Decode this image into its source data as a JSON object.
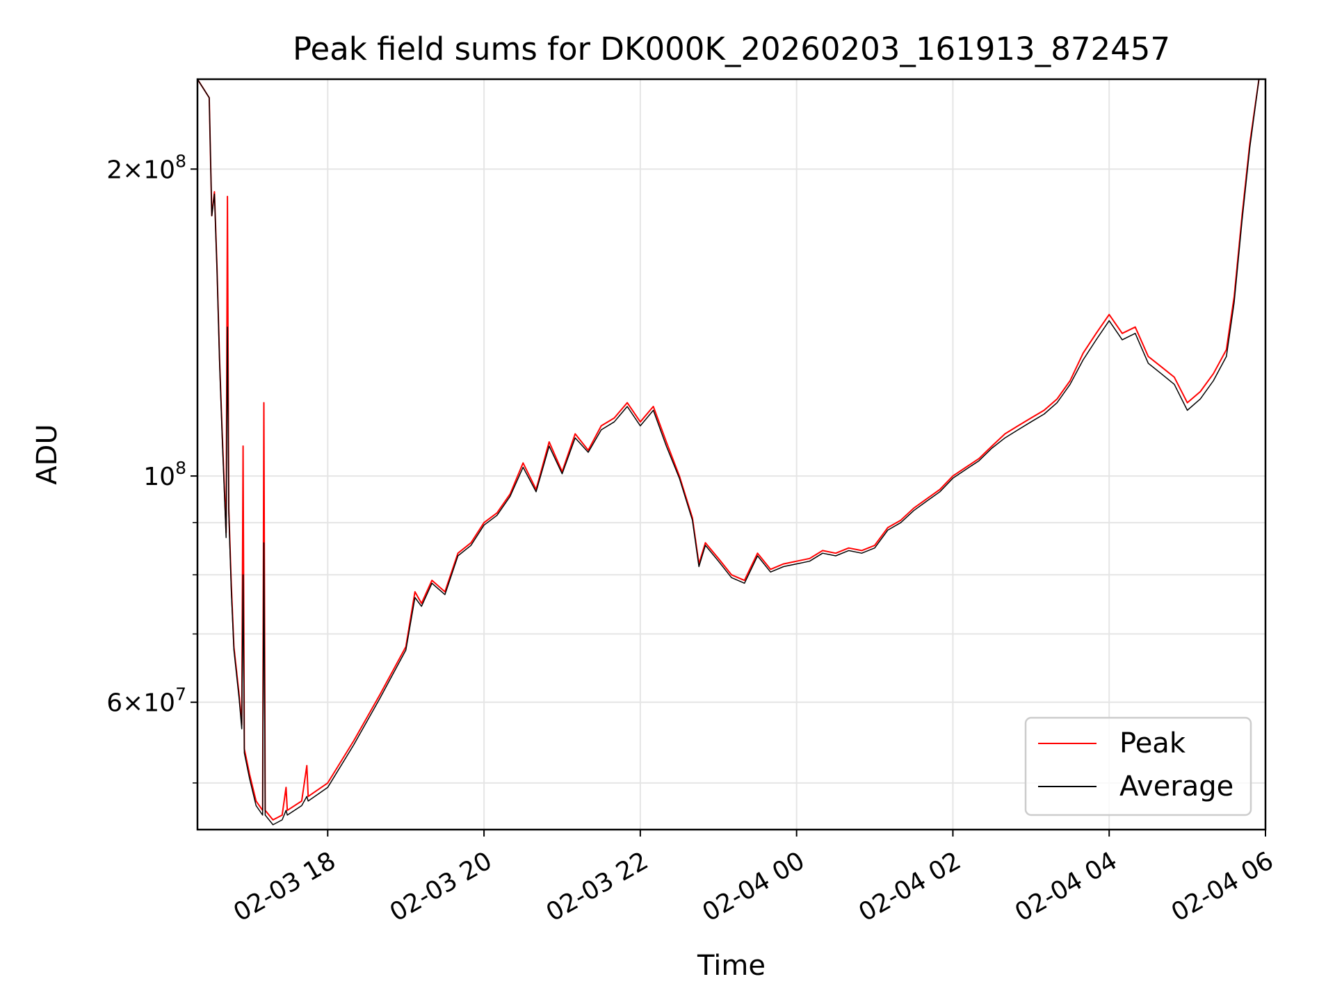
{
  "chart_data": {
    "type": "line",
    "title": "Peak field sums for DK000K_20260203_161913_872457",
    "xlabel": "Time",
    "ylabel": "ADU",
    "x_range": [
      "2026-02-03 16:20",
      "2026-02-04 06:00"
    ],
    "y_scale": "log",
    "ylim": [
      45000000,
      245000000
    ],
    "x_ticks": [
      {
        "value": "2026-02-03 18:00",
        "label": "02-03 18"
      },
      {
        "value": "2026-02-03 20:00",
        "label": "02-03 20"
      },
      {
        "value": "2026-02-03 22:00",
        "label": "02-03 22"
      },
      {
        "value": "2026-02-04 00:00",
        "label": "02-04 00"
      },
      {
        "value": "2026-02-04 02:00",
        "label": "02-04 02"
      },
      {
        "value": "2026-02-04 04:00",
        "label": "02-04 04"
      },
      {
        "value": "2026-02-04 06:00",
        "label": "02-04 06"
      }
    ],
    "y_major_ticks": [
      {
        "value": 200000000,
        "mantissa": "2",
        "exponent": "8",
        "label": "2×10^8"
      },
      {
        "value": 100000000,
        "mantissa": "",
        "exponent": "8",
        "label": "10^8"
      },
      {
        "value": 60000000,
        "mantissa": "6",
        "exponent": "7",
        "label": "6×10^7"
      }
    ],
    "y_minor_ticks": [
      50000000,
      70000000,
      80000000,
      90000000
    ],
    "grid": true,
    "legend_position": "lower-right",
    "series": [
      {
        "name": "Peak",
        "color": "#ff0000",
        "points": [
          [
            "2026-02-03 16:20",
            245000000
          ],
          [
            "2026-02-03 16:29",
            235000000
          ],
          [
            "2026-02-03 16:31",
            180000000
          ],
          [
            "2026-02-03 16:33",
            190000000
          ],
          [
            "2026-02-03 16:35",
            160000000
          ],
          [
            "2026-02-03 16:37",
            130000000
          ],
          [
            "2026-02-03 16:39",
            110000000
          ],
          [
            "2026-02-03 16:41",
            95000000
          ],
          [
            "2026-02-03 16:42",
            88000000
          ],
          [
            "2026-02-03 16:43",
            188000000
          ],
          [
            "2026-02-03 16:44",
            93000000
          ],
          [
            "2026-02-03 16:46",
            78000000
          ],
          [
            "2026-02-03 16:48",
            68000000
          ],
          [
            "2026-02-03 16:52",
            61000000
          ],
          [
            "2026-02-03 16:54",
            57000000
          ],
          [
            "2026-02-03 16:55",
            107000000
          ],
          [
            "2026-02-03 16:56",
            54000000
          ],
          [
            "2026-02-03 17:00",
            51000000
          ],
          [
            "2026-02-03 17:05",
            48000000
          ],
          [
            "2026-02-03 17:10",
            47000000
          ],
          [
            "2026-02-03 17:11",
            118000000
          ],
          [
            "2026-02-03 17:12",
            47000000
          ],
          [
            "2026-02-03 17:18",
            46000000
          ],
          [
            "2026-02-03 17:25",
            46500000
          ],
          [
            "2026-02-03 17:28",
            49500000
          ],
          [
            "2026-02-03 17:29",
            47000000
          ],
          [
            "2026-02-03 17:40",
            48000000
          ],
          [
            "2026-02-03 17:44",
            52000000
          ],
          [
            "2026-02-03 17:45",
            48500000
          ],
          [
            "2026-02-03 18:00",
            50000000
          ],
          [
            "2026-02-03 18:20",
            55000000
          ],
          [
            "2026-02-03 18:40",
            61000000
          ],
          [
            "2026-02-03 19:00",
            68000000
          ],
          [
            "2026-02-03 19:07",
            77000000
          ],
          [
            "2026-02-03 19:12",
            75000000
          ],
          [
            "2026-02-03 19:20",
            79000000
          ],
          [
            "2026-02-03 19:30",
            77000000
          ],
          [
            "2026-02-03 19:40",
            84000000
          ],
          [
            "2026-02-03 19:50",
            86000000
          ],
          [
            "2026-02-03 20:00",
            90000000
          ],
          [
            "2026-02-03 20:10",
            92000000
          ],
          [
            "2026-02-03 20:20",
            96000000
          ],
          [
            "2026-02-03 20:30",
            103000000
          ],
          [
            "2026-02-03 20:40",
            97000000
          ],
          [
            "2026-02-03 20:50",
            108000000
          ],
          [
            "2026-02-03 21:00",
            101000000
          ],
          [
            "2026-02-03 21:10",
            110000000
          ],
          [
            "2026-02-03 21:20",
            106000000
          ],
          [
            "2026-02-03 21:30",
            112000000
          ],
          [
            "2026-02-03 21:40",
            114000000
          ],
          [
            "2026-02-03 21:50",
            118000000
          ],
          [
            "2026-02-03 22:00",
            113000000
          ],
          [
            "2026-02-03 22:10",
            117000000
          ],
          [
            "2026-02-03 22:20",
            108000000
          ],
          [
            "2026-02-03 22:30",
            100000000
          ],
          [
            "2026-02-03 22:40",
            91000000
          ],
          [
            "2026-02-03 22:45",
            82000000
          ],
          [
            "2026-02-03 22:50",
            86000000
          ],
          [
            "2026-02-03 23:00",
            83000000
          ],
          [
            "2026-02-03 23:10",
            80000000
          ],
          [
            "2026-02-03 23:20",
            79000000
          ],
          [
            "2026-02-03 23:30",
            84000000
          ],
          [
            "2026-02-03 23:40",
            81000000
          ],
          [
            "2026-02-03 23:50",
            82000000
          ],
          [
            "2026-02-04 00:00",
            82500000
          ],
          [
            "2026-02-04 00:10",
            83000000
          ],
          [
            "2026-02-04 00:20",
            84500000
          ],
          [
            "2026-02-04 00:30",
            84000000
          ],
          [
            "2026-02-04 00:40",
            85000000
          ],
          [
            "2026-02-04 00:50",
            84500000
          ],
          [
            "2026-02-04 01:00",
            85500000
          ],
          [
            "2026-02-04 01:10",
            89000000
          ],
          [
            "2026-02-04 01:20",
            90500000
          ],
          [
            "2026-02-04 01:30",
            93000000
          ],
          [
            "2026-02-04 01:40",
            95000000
          ],
          [
            "2026-02-04 01:50",
            97000000
          ],
          [
            "2026-02-04 02:00",
            100000000
          ],
          [
            "2026-02-04 02:10",
            102000000
          ],
          [
            "2026-02-04 02:20",
            104000000
          ],
          [
            "2026-02-04 02:30",
            107000000
          ],
          [
            "2026-02-04 02:40",
            110000000
          ],
          [
            "2026-02-04 02:50",
            112000000
          ],
          [
            "2026-02-04 03:00",
            114000000
          ],
          [
            "2026-02-04 03:10",
            116000000
          ],
          [
            "2026-02-04 03:20",
            119000000
          ],
          [
            "2026-02-04 03:30",
            124000000
          ],
          [
            "2026-02-04 03:40",
            132000000
          ],
          [
            "2026-02-04 03:50",
            138000000
          ],
          [
            "2026-02-04 04:00",
            144000000
          ],
          [
            "2026-02-04 04:10",
            138000000
          ],
          [
            "2026-02-04 04:20",
            140000000
          ],
          [
            "2026-02-04 04:30",
            131000000
          ],
          [
            "2026-02-04 04:40",
            128000000
          ],
          [
            "2026-02-04 04:50",
            125000000
          ],
          [
            "2026-02-04 05:00",
            118000000
          ],
          [
            "2026-02-04 05:10",
            121000000
          ],
          [
            "2026-02-04 05:20",
            126000000
          ],
          [
            "2026-02-04 05:30",
            133000000
          ],
          [
            "2026-02-04 05:36",
            150000000
          ],
          [
            "2026-02-04 05:42",
            180000000
          ],
          [
            "2026-02-04 05:48",
            212000000
          ],
          [
            "2026-02-04 05:55",
            245000000
          ]
        ]
      },
      {
        "name": "Average",
        "color": "#000000",
        "points": [
          [
            "2026-02-03 16:20",
            245000000
          ],
          [
            "2026-02-03 16:29",
            235000000
          ],
          [
            "2026-02-03 16:31",
            180000000
          ],
          [
            "2026-02-03 16:33",
            189000000
          ],
          [
            "2026-02-03 16:35",
            159000000
          ],
          [
            "2026-02-03 16:37",
            129000000
          ],
          [
            "2026-02-03 16:39",
            109000000
          ],
          [
            "2026-02-03 16:41",
            94000000
          ],
          [
            "2026-02-03 16:42",
            87000000
          ],
          [
            "2026-02-03 16:43",
            140000000
          ],
          [
            "2026-02-03 16:44",
            92000000
          ],
          [
            "2026-02-03 16:46",
            77000000
          ],
          [
            "2026-02-03 16:48",
            67500000
          ],
          [
            "2026-02-03 16:52",
            60500000
          ],
          [
            "2026-02-03 16:54",
            56500000
          ],
          [
            "2026-02-03 16:55",
            80000000
          ],
          [
            "2026-02-03 16:56",
            53500000
          ],
          [
            "2026-02-03 17:00",
            50500000
          ],
          [
            "2026-02-03 17:05",
            47500000
          ],
          [
            "2026-02-03 17:10",
            46500000
          ],
          [
            "2026-02-03 17:11",
            86000000
          ],
          [
            "2026-02-03 17:12",
            46500000
          ],
          [
            "2026-02-03 17:18",
            45500000
          ],
          [
            "2026-02-03 17:25",
            46000000
          ],
          [
            "2026-02-03 17:28",
            47000000
          ],
          [
            "2026-02-03 17:29",
            46500000
          ],
          [
            "2026-02-03 17:40",
            47500000
          ],
          [
            "2026-02-03 17:44",
            48500000
          ],
          [
            "2026-02-03 17:45",
            48000000
          ],
          [
            "2026-02-03 18:00",
            49500000
          ],
          [
            "2026-02-03 18:20",
            54500000
          ],
          [
            "2026-02-03 18:40",
            60500000
          ],
          [
            "2026-02-03 19:00",
            67500000
          ],
          [
            "2026-02-03 19:07",
            76000000
          ],
          [
            "2026-02-03 19:12",
            74500000
          ],
          [
            "2026-02-03 19:20",
            78500000
          ],
          [
            "2026-02-03 19:30",
            76500000
          ],
          [
            "2026-02-03 19:40",
            83500000
          ],
          [
            "2026-02-03 19:50",
            85500000
          ],
          [
            "2026-02-03 20:00",
            89500000
          ],
          [
            "2026-02-03 20:10",
            91500000
          ],
          [
            "2026-02-03 20:20",
            95500000
          ],
          [
            "2026-02-03 20:30",
            102000000
          ],
          [
            "2026-02-03 20:40",
            96500000
          ],
          [
            "2026-02-03 20:50",
            107000000
          ],
          [
            "2026-02-03 21:00",
            100500000
          ],
          [
            "2026-02-03 21:10",
            109000000
          ],
          [
            "2026-02-03 21:20",
            105500000
          ],
          [
            "2026-02-03 21:30",
            111000000
          ],
          [
            "2026-02-03 21:40",
            113000000
          ],
          [
            "2026-02-03 21:50",
            117000000
          ],
          [
            "2026-02-03 22:00",
            112000000
          ],
          [
            "2026-02-03 22:10",
            116000000
          ],
          [
            "2026-02-03 22:20",
            107000000
          ],
          [
            "2026-02-03 22:30",
            99500000
          ],
          [
            "2026-02-03 22:40",
            90500000
          ],
          [
            "2026-02-03 22:45",
            81500000
          ],
          [
            "2026-02-03 22:50",
            85500000
          ],
          [
            "2026-02-03 23:00",
            82500000
          ],
          [
            "2026-02-03 23:10",
            79500000
          ],
          [
            "2026-02-03 23:20",
            78500000
          ],
          [
            "2026-02-03 23:30",
            83500000
          ],
          [
            "2026-02-03 23:40",
            80500000
          ],
          [
            "2026-02-03 23:50",
            81500000
          ],
          [
            "2026-02-04 00:00",
            82000000
          ],
          [
            "2026-02-04 00:10",
            82500000
          ],
          [
            "2026-02-04 00:20",
            84000000
          ],
          [
            "2026-02-04 00:30",
            83500000
          ],
          [
            "2026-02-04 00:40",
            84500000
          ],
          [
            "2026-02-04 00:50",
            84000000
          ],
          [
            "2026-02-04 01:00",
            85000000
          ],
          [
            "2026-02-04 01:10",
            88500000
          ],
          [
            "2026-02-04 01:20",
            90000000
          ],
          [
            "2026-02-04 01:30",
            92500000
          ],
          [
            "2026-02-04 01:40",
            94500000
          ],
          [
            "2026-02-04 01:50",
            96500000
          ],
          [
            "2026-02-04 02:00",
            99500000
          ],
          [
            "2026-02-04 02:10",
            101500000
          ],
          [
            "2026-02-04 02:20",
            103500000
          ],
          [
            "2026-02-04 02:30",
            106500000
          ],
          [
            "2026-02-04 02:40",
            109000000
          ],
          [
            "2026-02-04 02:50",
            111000000
          ],
          [
            "2026-02-04 03:00",
            113000000
          ],
          [
            "2026-02-04 03:10",
            115000000
          ],
          [
            "2026-02-04 03:20",
            118000000
          ],
          [
            "2026-02-04 03:30",
            123000000
          ],
          [
            "2026-02-04 03:40",
            130000000
          ],
          [
            "2026-02-04 03:50",
            136000000
          ],
          [
            "2026-02-04 04:00",
            142000000
          ],
          [
            "2026-02-04 04:10",
            136000000
          ],
          [
            "2026-02-04 04:20",
            138000000
          ],
          [
            "2026-02-04 04:30",
            129000000
          ],
          [
            "2026-02-04 04:40",
            126000000
          ],
          [
            "2026-02-04 04:50",
            123000000
          ],
          [
            "2026-02-04 05:00",
            116000000
          ],
          [
            "2026-02-04 05:10",
            119000000
          ],
          [
            "2026-02-04 05:20",
            124000000
          ],
          [
            "2026-02-04 05:30",
            131000000
          ],
          [
            "2026-02-04 05:36",
            148000000
          ],
          [
            "2026-02-04 05:42",
            178000000
          ],
          [
            "2026-02-04 05:48",
            210000000
          ],
          [
            "2026-02-04 05:55",
            245000000
          ]
        ]
      }
    ]
  }
}
